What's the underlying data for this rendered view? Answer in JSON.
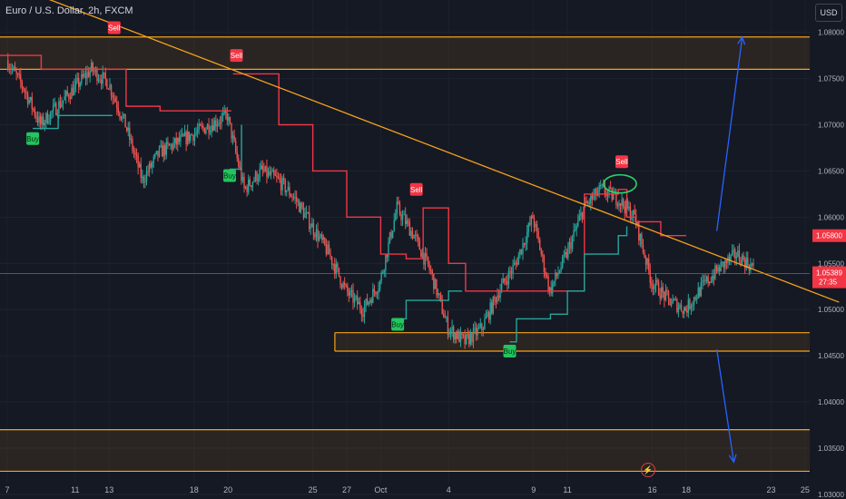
{
  "header": {
    "title": "Euro / U.S. Dollar, 2h, FXCM",
    "currency": "USD"
  },
  "icons": {
    "alert": "lightning-icon"
  },
  "chart_data": {
    "type": "candlestick",
    "symbol": "Euro / U.S. Dollar",
    "timeframe": "2h",
    "source": "FXCM",
    "ylim": [
      1.0295,
      1.0835
    ],
    "price_ticks": [
      "1.08000",
      "1.07500",
      "1.07000",
      "1.06500",
      "1.06000",
      "1.05500",
      "1.05000",
      "1.04500",
      "1.04000",
      "1.03500",
      "1.03000"
    ],
    "date_ticks": [
      "7",
      "11",
      "13",
      "18",
      "20",
      "25",
      "27",
      "Oct",
      "4",
      "9",
      "11",
      "16",
      "18",
      "23",
      "25"
    ],
    "price_path": [
      [
        7,
        1.077
      ],
      [
        8,
        1.074
      ],
      [
        9,
        1.07
      ],
      [
        10,
        1.072
      ],
      [
        11,
        1.074
      ],
      [
        12,
        1.076
      ],
      [
        13,
        1.0745
      ],
      [
        14,
        1.07
      ],
      [
        15,
        1.064
      ],
      [
        16,
        1.067
      ],
      [
        17,
        1.068
      ],
      [
        18,
        1.069
      ],
      [
        19,
        1.07
      ],
      [
        20,
        1.071
      ],
      [
        21,
        1.063
      ],
      [
        22,
        1.065
      ],
      [
        23,
        1.064
      ],
      [
        24,
        1.062
      ],
      [
        25,
        1.059
      ],
      [
        26,
        1.056
      ],
      [
        27,
        1.052
      ],
      [
        28,
        1.05
      ],
      [
        29,
        1.053
      ],
      [
        30,
        1.061
      ],
      [
        31,
        1.058
      ],
      [
        32,
        1.054
      ],
      [
        33,
        1.048
      ],
      [
        34,
        1.0465
      ],
      [
        35,
        1.048
      ],
      [
        36,
        1.052
      ],
      [
        37,
        1.055
      ],
      [
        38,
        1.06
      ],
      [
        39,
        1.052
      ],
      [
        40,
        1.056
      ],
      [
        41,
        1.061
      ],
      [
        42,
        1.063
      ],
      [
        43,
        1.062
      ],
      [
        44,
        1.06
      ],
      [
        45,
        1.053
      ],
      [
        46,
        1.051
      ],
      [
        47,
        1.05
      ],
      [
        48,
        1.0525
      ],
      [
        49,
        1.0545
      ],
      [
        50,
        1.056
      ],
      [
        51,
        1.0545
      ]
    ],
    "last_price": "1.05389",
    "countdown": "27:35",
    "marked_level": "1.05800",
    "signals": [
      {
        "label": "Sell",
        "x": 13.3,
        "y": 1.0805
      },
      {
        "label": "Sell",
        "x": 20.5,
        "y": 1.0775
      },
      {
        "label": "Sell",
        "x": 31.1,
        "y": 1.063
      },
      {
        "label": "Sell",
        "x": 43.2,
        "y": 1.066
      },
      {
        "label": "Buy",
        "x": 8.5,
        "y": 1.0685
      },
      {
        "label": "Buy",
        "x": 20.1,
        "y": 1.0645
      },
      {
        "label": "Buy",
        "x": 30.0,
        "y": 1.0484
      },
      {
        "label": "Buy",
        "x": 36.6,
        "y": 1.0455
      }
    ],
    "supertrend_segments": [
      {
        "color": "#f23645",
        "points": [
          [
            6.5,
            1.0775
          ],
          [
            9,
            1.076
          ],
          [
            13,
            1.076
          ],
          [
            14,
            1.072
          ],
          [
            16,
            1.0715
          ],
          [
            20.2,
            1.0715
          ]
        ]
      },
      {
        "color": "#f23645",
        "points": [
          [
            20.3,
            1.0755
          ],
          [
            23,
            1.07
          ],
          [
            25,
            1.065
          ],
          [
            27,
            1.06
          ],
          [
            29,
            1.056
          ],
          [
            30.5,
            1.0555
          ],
          [
            31.5,
            1.061
          ],
          [
            33,
            1.055
          ],
          [
            34,
            1.052
          ],
          [
            36,
            1.052
          ],
          [
            41,
            1.0625
          ],
          [
            43,
            1.063
          ],
          [
            43.5,
            1.06
          ],
          [
            44,
            1.0595
          ],
          [
            45.5,
            1.058
          ],
          [
            47,
            1.058
          ]
        ]
      },
      {
        "color": "#26a69a",
        "points": [
          [
            8.5,
            1.0696
          ],
          [
            10,
            1.071
          ],
          [
            13.2,
            1.071
          ]
        ]
      },
      {
        "color": "#26a69a",
        "points": [
          [
            20.1,
            1.0652
          ],
          [
            20.8,
            1.07
          ]
        ]
      },
      {
        "color": "#26a69a",
        "points": [
          [
            30,
            1.049
          ],
          [
            30.5,
            1.051
          ],
          [
            33,
            1.052
          ],
          [
            33.8,
            1.052
          ]
        ]
      },
      {
        "color": "#26a69a",
        "points": [
          [
            36.6,
            1.0465
          ],
          [
            37,
            1.049
          ],
          [
            39,
            1.0495
          ],
          [
            40,
            1.052
          ],
          [
            41,
            1.056
          ],
          [
            43,
            1.058
          ],
          [
            43.5,
            1.059
          ]
        ]
      }
    ],
    "zones": [
      {
        "from": 1.076,
        "to": 1.0795
      },
      {
        "from": 1.0455,
        "to": 1.0475
      },
      {
        "from": 1.0325,
        "to": 1.037
      }
    ],
    "trendline": [
      [
        6.0,
        1.086
      ],
      [
        56.0,
        1.0508
      ]
    ],
    "ellipse": {
      "x": 43.1,
      "y": 1.0636
    },
    "projection_arrows": [
      {
        "from": [
          48.8,
          1.0585
        ],
        "to": [
          50.3,
          1.0795
        ]
      },
      {
        "from": [
          48.8,
          1.0457
        ],
        "to": [
          49.8,
          1.0335
        ]
      }
    ]
  }
}
